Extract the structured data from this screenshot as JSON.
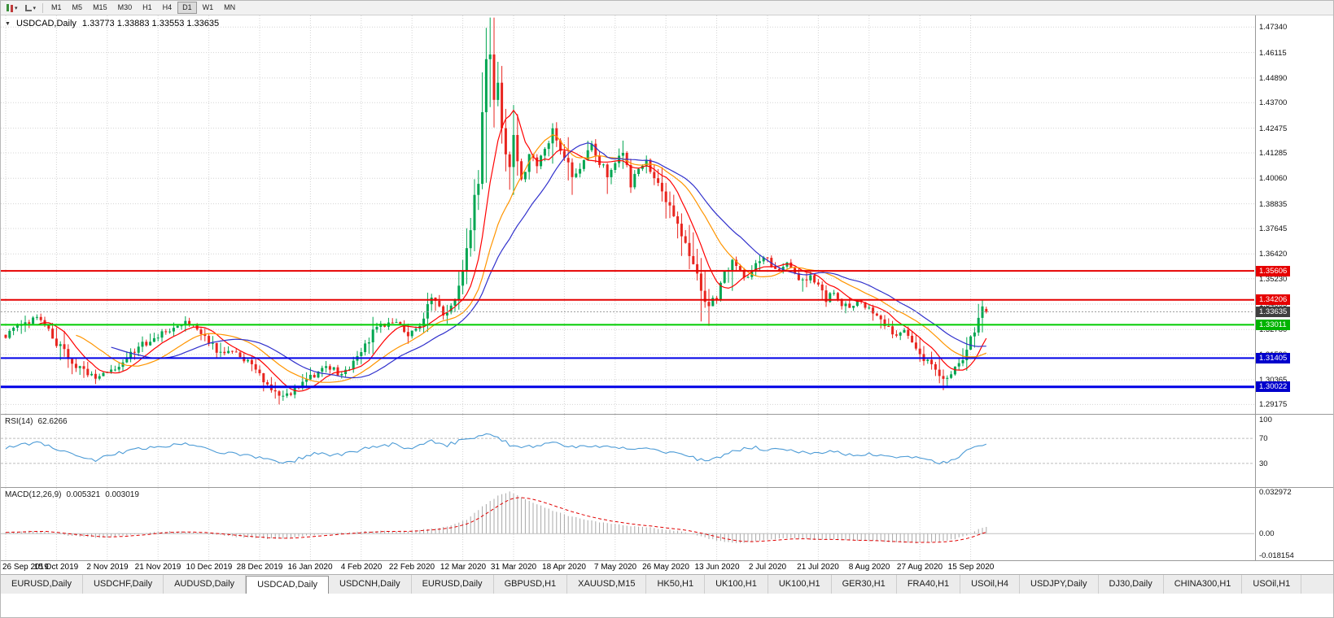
{
  "window": {
    "title": "USDCAD,Daily"
  },
  "toolbar": {
    "timeframes": [
      "M1",
      "M5",
      "M15",
      "M30",
      "H1",
      "H4",
      "D1",
      "W1",
      "MN"
    ],
    "active_timeframe": "D1"
  },
  "chart": {
    "symbol_period": "USDCAD,Daily",
    "ohlc_text": "1.33773 1.33883 1.33553 1.33635",
    "open": "1.33773",
    "high": "1.33883",
    "low": "1.33553",
    "close": "1.33635"
  },
  "price_axis": {
    "ticks": [
      "1.47340",
      "1.46115",
      "1.44890",
      "1.43700",
      "1.42475",
      "1.41285",
      "1.40060",
      "1.38835",
      "1.37645",
      "1.36420",
      "1.35230",
      "1.34005",
      "1.32780",
      "1.31590",
      "1.30365",
      "1.29175"
    ]
  },
  "panels": {
    "rsi": {
      "name": "RSI(14)",
      "value": "62.6266",
      "axis_ticks": [
        "100",
        "70",
        "30"
      ]
    },
    "macd": {
      "name": "MACD(12,26,9)",
      "value_main": "0.005321",
      "value_signal": "0.003019",
      "axis_ticks": [
        "0.032972",
        "0.00",
        "-0.018154"
      ]
    }
  },
  "date_axis": {
    "labels": [
      "26 Sep 2019",
      "15 Oct 2019",
      "2 Nov 2019",
      "21 Nov 2019",
      "10 Dec 2019",
      "28 Dec 2019",
      "16 Jan 2020",
      "4 Feb 2020",
      "22 Feb 2020",
      "12 Mar 2020",
      "31 Mar 2020",
      "18 Apr 2020",
      "7 May 2020",
      "26 May 2020",
      "13 Jun 2020",
      "2 Jul 2020",
      "21 Jul 2020",
      "8 Aug 2020",
      "27 Aug 2020",
      "15 Sep 2020"
    ]
  },
  "tabs": {
    "active_index": 3,
    "items": [
      "EURUSD,Daily",
      "USDCHF,Daily",
      "AUDUSD,Daily",
      "USDCAD,Daily",
      "USDCNH,Daily",
      "EURUSD,Daily",
      "GBPUSD,H1",
      "XAUUSD,M15",
      "HK50,H1",
      "UK100,H1",
      "UK100,H1",
      "GER30,H1",
      "FRA40,H1",
      "USOil,H4",
      "USDJPY,Daily",
      "DJ30,Daily",
      "CHINA300,H1",
      "USOil,H1"
    ]
  },
  "chart_data": [
    {
      "type": "candlestick",
      "name": "USDCAD Daily",
      "bars": 252,
      "y_range": [
        1.2872,
        1.479
      ],
      "up_color": "#00A651",
      "down_color": "#E8251F",
      "ma": [
        {
          "period": 9,
          "color": "#FF0000"
        },
        {
          "period": 19,
          "color": "#FF9500"
        },
        {
          "period": 28,
          "color": "#3030CC"
        }
      ],
      "close_anchors": [
        [
          0,
          1.3245
        ],
        [
          4,
          1.331
        ],
        [
          9,
          1.3335
        ],
        [
          14,
          1.319
        ],
        [
          19,
          1.309
        ],
        [
          23,
          1.3052
        ],
        [
          27,
          1.3085
        ],
        [
          32,
          1.3155
        ],
        [
          37,
          1.3235
        ],
        [
          42,
          1.3275
        ],
        [
          46,
          1.3315
        ],
        [
          50,
          1.327
        ],
        [
          54,
          1.3185
        ],
        [
          58,
          1.317
        ],
        [
          62,
          1.312
        ],
        [
          66,
          1.304
        ],
        [
          69,
          1.298
        ],
        [
          72,
          1.296
        ],
        [
          75,
          1.3005
        ],
        [
          79,
          1.306
        ],
        [
          83,
          1.31
        ],
        [
          86,
          1.3055
        ],
        [
          89,
          1.311
        ],
        [
          92,
          1.32
        ],
        [
          95,
          1.3285
        ],
        [
          99,
          1.332
        ],
        [
          103,
          1.326
        ],
        [
          106,
          1.329
        ],
        [
          109,
          1.3435
        ],
        [
          111,
          1.338
        ],
        [
          113,
          1.3345
        ],
        [
          115,
          1.3425
        ],
        [
          117,
          1.3555
        ],
        [
          119,
          1.3745
        ],
        [
          121,
          1.404
        ],
        [
          123,
          1.4495
        ],
        [
          124,
          1.458
        ],
        [
          125,
          1.439
        ],
        [
          126,
          1.447
        ],
        [
          127,
          1.4285
        ],
        [
          128,
          1.415
        ],
        [
          129,
          1.4065
        ],
        [
          130,
          1.42
        ],
        [
          131,
          1.4105
        ],
        [
          132,
          1.4
        ],
        [
          134,
          1.4115
        ],
        [
          136,
          1.406
        ],
        [
          138,
          1.416
        ],
        [
          140,
          1.425
        ],
        [
          142,
          1.4145
        ],
        [
          144,
          1.406
        ],
        [
          146,
          1.4005
        ],
        [
          148,
          1.4095
        ],
        [
          150,
          1.4165
        ],
        [
          152,
          1.4075
        ],
        [
          154,
          1.402
        ],
        [
          156,
          1.4085
        ],
        [
          158,
          1.4125
        ],
        [
          160,
          1.3985
        ],
        [
          162,
          1.4045
        ],
        [
          164,
          1.41
        ],
        [
          166,
          1.399
        ],
        [
          168,
          1.393
        ],
        [
          170,
          1.3865
        ],
        [
          172,
          1.3775
        ],
        [
          174,
          1.368
        ],
        [
          176,
          1.3565
        ],
        [
          178,
          1.3475
        ],
        [
          180,
          1.339
        ],
        [
          182,
          1.3435
        ],
        [
          184,
          1.355
        ],
        [
          186,
          1.3615
        ],
        [
          188,
          1.356
        ],
        [
          190,
          1.353
        ],
        [
          192,
          1.3595
        ],
        [
          194,
          1.3645
        ],
        [
          196,
          1.358
        ],
        [
          198,
          1.355
        ],
        [
          200,
          1.36
        ],
        [
          202,
          1.3555
        ],
        [
          204,
          1.35
        ],
        [
          206,
          1.354
        ],
        [
          208,
          1.348
        ],
        [
          210,
          1.3425
        ],
        [
          212,
          1.3465
        ],
        [
          214,
          1.34
        ],
        [
          216,
          1.337
        ],
        [
          218,
          1.3415
        ],
        [
          220,
          1.339
        ],
        [
          222,
          1.335
        ],
        [
          224,
          1.331
        ],
        [
          226,
          1.328
        ],
        [
          228,
          1.3235
        ],
        [
          230,
          1.327
        ],
        [
          232,
          1.321
        ],
        [
          234,
          1.316
        ],
        [
          236,
          1.313
        ],
        [
          238,
          1.308
        ],
        [
          240,
          1.303
        ],
        [
          242,
          1.3065
        ],
        [
          244,
          1.313
        ],
        [
          246,
          1.317
        ],
        [
          248,
          1.329
        ],
        [
          249,
          1.336
        ],
        [
          250,
          1.3405
        ],
        [
          251,
          1.3364
        ]
      ],
      "extreme_highs": [
        {
          "bar": 124,
          "price": 1.466
        },
        {
          "bar": 250,
          "price": 1.3421
        }
      ],
      "extreme_lows": [
        {
          "bar": 72,
          "price": 1.2951
        },
        {
          "bar": 178,
          "price": 1.3317
        },
        {
          "bar": 240,
          "price": 1.2994
        }
      ],
      "last_candle": {
        "o": 1.33773,
        "h": 1.33883,
        "l": 1.33553,
        "c": 1.33635
      },
      "horizontal_lines": [
        {
          "price": 1.35606,
          "label": "1.35606",
          "color": "#E60000",
          "width": 2,
          "style": "solid",
          "tag_bg": "#E60000"
        },
        {
          "price": 1.34206,
          "label": "1.34206",
          "color": "#E60000",
          "width": 2,
          "style": "solid",
          "tag_bg": "#E60000"
        },
        {
          "price": 1.33635,
          "label": "1.33635",
          "color": "#9A9A9A",
          "width": 1,
          "style": "dotted",
          "tag_bg": "#3F3F3F"
        },
        {
          "price": 1.33011,
          "label": "1.33011",
          "color": "#00CC00",
          "width": 2,
          "style": "solid",
          "tag_bg": "#00B300"
        },
        {
          "price": 1.31405,
          "label": "1.31405",
          "color": "#0000E6",
          "width": 2,
          "style": "solid",
          "tag_bg": "#0000CC"
        },
        {
          "price": 1.30022,
          "label": "1.30022",
          "color": "#0000E6",
          "width": 3,
          "style": "solid",
          "tag_bg": "#0000CC"
        }
      ]
    },
    {
      "type": "line",
      "name": "RSI(14)",
      "current": 62.6266,
      "range": [
        0,
        100
      ],
      "levels": [
        70,
        30
      ],
      "color": "#4C9BD6",
      "anchors": [
        [
          0,
          55
        ],
        [
          9,
          63
        ],
        [
          14,
          50
        ],
        [
          23,
          36
        ],
        [
          27,
          44
        ],
        [
          37,
          56
        ],
        [
          46,
          61
        ],
        [
          54,
          49
        ],
        [
          62,
          43
        ],
        [
          69,
          33
        ],
        [
          72,
          30
        ],
        [
          79,
          46
        ],
        [
          86,
          43
        ],
        [
          92,
          53
        ],
        [
          99,
          61
        ],
        [
          103,
          53
        ],
        [
          109,
          66
        ],
        [
          113,
          59
        ],
        [
          117,
          68
        ],
        [
          121,
          74
        ],
        [
          124,
          77
        ],
        [
          127,
          67
        ],
        [
          129,
          60
        ],
        [
          132,
          56
        ],
        [
          136,
          58
        ],
        [
          140,
          64
        ],
        [
          144,
          56
        ],
        [
          148,
          59
        ],
        [
          152,
          55
        ],
        [
          156,
          58
        ],
        [
          160,
          51
        ],
        [
          164,
          56
        ],
        [
          168,
          49
        ],
        [
          172,
          45
        ],
        [
          176,
          39
        ],
        [
          180,
          33
        ],
        [
          184,
          44
        ],
        [
          188,
          52
        ],
        [
          192,
          55
        ],
        [
          196,
          51
        ],
        [
          200,
          53
        ],
        [
          204,
          47
        ],
        [
          208,
          45
        ],
        [
          212,
          49
        ],
        [
          216,
          43
        ],
        [
          220,
          45
        ],
        [
          224,
          41
        ],
        [
          228,
          37
        ],
        [
          232,
          40
        ],
        [
          236,
          35
        ],
        [
          240,
          31
        ],
        [
          244,
          42
        ],
        [
          248,
          56
        ],
        [
          251,
          62.6
        ]
      ]
    },
    {
      "type": "bar",
      "name": "MACD(12,26,9)",
      "macd": 0.005321,
      "signal": 0.003019,
      "range": [
        -0.018154,
        0.032972
      ],
      "histogram_color": "#A8A8A8",
      "signal_color": "#E00000",
      "anchors": [
        [
          0,
          0.0012
        ],
        [
          8,
          0.0022
        ],
        [
          16,
          -0.0015
        ],
        [
          24,
          -0.0035
        ],
        [
          32,
          -0.001
        ],
        [
          40,
          0.0018
        ],
        [
          48,
          0.0012
        ],
        [
          56,
          -0.0018
        ],
        [
          64,
          -0.0035
        ],
        [
          70,
          -0.0042
        ],
        [
          78,
          -0.0015
        ],
        [
          86,
          0.0005
        ],
        [
          94,
          0.0022
        ],
        [
          102,
          0.0018
        ],
        [
          108,
          0.0035
        ],
        [
          114,
          0.006
        ],
        [
          118,
          0.011
        ],
        [
          122,
          0.021
        ],
        [
          126,
          0.0295
        ],
        [
          129,
          0.0325
        ],
        [
          132,
          0.028
        ],
        [
          136,
          0.023
        ],
        [
          140,
          0.018
        ],
        [
          144,
          0.014
        ],
        [
          148,
          0.011
        ],
        [
          152,
          0.009
        ],
        [
          156,
          0.0075
        ],
        [
          160,
          0.006
        ],
        [
          164,
          0.005
        ],
        [
          168,
          0.0035
        ],
        [
          172,
          0.002
        ],
        [
          176,
          -0.0005
        ],
        [
          180,
          -0.004
        ],
        [
          184,
          -0.0065
        ],
        [
          188,
          -0.0075
        ],
        [
          192,
          -0.006
        ],
        [
          196,
          -0.0045
        ],
        [
          200,
          -0.0035
        ],
        [
          204,
          -0.004
        ],
        [
          208,
          -0.005
        ],
        [
          212,
          -0.0045
        ],
        [
          216,
          -0.005
        ],
        [
          220,
          -0.0055
        ],
        [
          224,
          -0.006
        ],
        [
          228,
          -0.0068
        ],
        [
          232,
          -0.0072
        ],
        [
          236,
          -0.0068
        ],
        [
          240,
          -0.006
        ],
        [
          243,
          -0.004
        ],
        [
          246,
          -0.0015
        ],
        [
          249,
          0.0035
        ],
        [
          251,
          0.0053
        ]
      ]
    }
  ]
}
